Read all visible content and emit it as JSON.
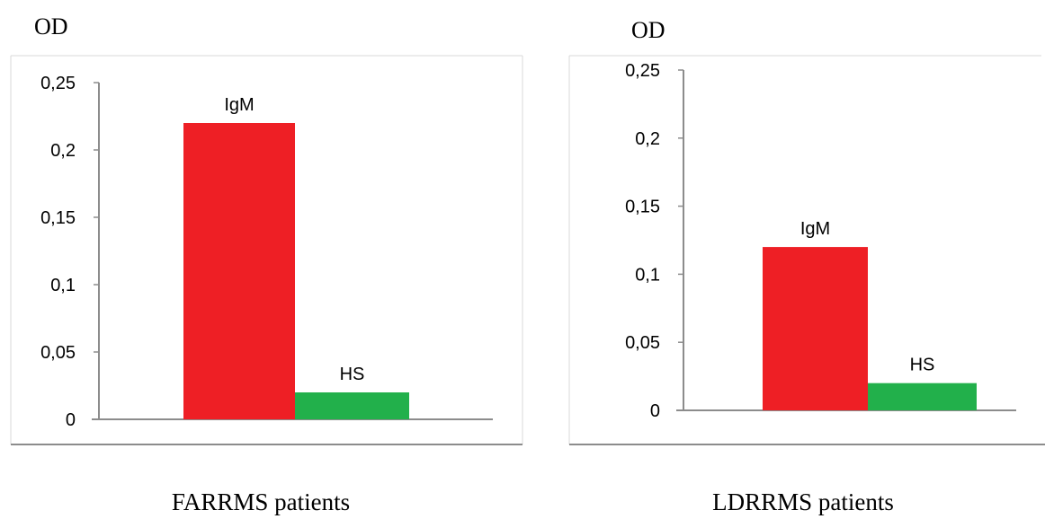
{
  "chart_data": [
    {
      "type": "bar",
      "ylabel": "OD",
      "xlabel": "FARRMS patients",
      "ylim": [
        0,
        0.25
      ],
      "yticks": [
        "0",
        "0,05",
        "0,1",
        "0,15",
        "0,2",
        "0,25"
      ],
      "categories": [
        "IgM",
        "HS"
      ],
      "values": [
        0.22,
        0.02
      ],
      "colors": [
        "#ee1f25",
        "#22b04b"
      ],
      "grid": false,
      "legend": "none"
    },
    {
      "type": "bar",
      "ylabel": "OD",
      "xlabel": "LDRRMS patients",
      "ylim": [
        0,
        0.25
      ],
      "yticks": [
        "0",
        "0,05",
        "0,1",
        "0,15",
        "0,2",
        "0,25"
      ],
      "categories": [
        "IgM",
        "HS"
      ],
      "values": [
        0.12,
        0.02
      ],
      "colors": [
        "#ee1f25",
        "#22b04b"
      ],
      "grid": false,
      "legend": "none"
    }
  ]
}
